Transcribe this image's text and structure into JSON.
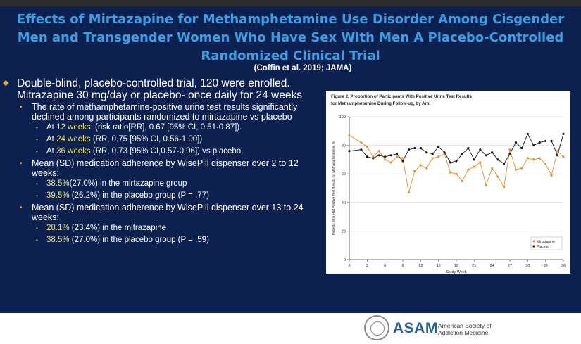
{
  "slide": {
    "title": "Effects of Mirtazapine for Methamphetamine Use Disorder Among Cisgender Men and Transgender Women Who Have Sex With Men A Placebo-Controlled Randomized Clinical Trial",
    "citation": "(Coffin et al. 2019; JAMA)",
    "bullets": {
      "b1a": "Double-blind, placebo-controlled trial, 120 were enrolled. Mitrazapine 30 mg/day or placebo- once daily for 24 weeks",
      "b2a": "The rate of methamphetamine-positive urine test results significantly declined among participants randomized to mirtazapine vs placebo",
      "b3a_pre": "At ",
      "b3a_hl": "12 weeks",
      "b3a_post": ": (risk ratio[RR], 0.67 [95% CI, 0.51-0.87]).",
      "b3b_pre": "At ",
      "b3b_hl": "24 weeks",
      "b3b_post": " (RR, 0.75 [95% CI, 0.56-1.00])",
      "b3c_pre": "At ",
      "b3c_hl": "36 weeks",
      "b3c_post": " (RR, 0.73 [95% CI,0.57-0.96]) vs placebo.",
      "b2b": "Mean (SD) medication adherence by WisePill dispenser over 2 to 12 weeks:",
      "b3d_hl": "38.5%",
      "b3d_post": "(27.0%) in the mirtazapine group",
      "b3e_hl": "39.5%",
      "b3e_post": " (26.2%) in the placebo group (P = .77)",
      "b2c": "Mean (SD) medication adherence by WisePill dispenser over 13 to 24 weeks:",
      "b3f_hl": "28.1%",
      "b3f_post": " (23.4%) in the mitrazapine",
      "b3g_hl": "38.5%",
      "b3g_post": " (27.0%) in the placebo group (P = .59)"
    }
  },
  "footer": {
    "org_abbrev": "ASAM",
    "org_name": "American Society of Addiction Medicine"
  },
  "colors": {
    "slide_bg": "#0d2150",
    "title": "#3aa0e6",
    "highlight": "#f3e64a",
    "mirtazapine": "#e8902a",
    "placebo": "#1a1a1a"
  },
  "chart_data": {
    "type": "line",
    "title": "Figure 2. Proportion of Participants With Positive Urine Test Results for Methamphetamine During Follow-up, by Arm",
    "xlabel": "Study Week",
    "ylabel": "Patients Who Had Positive Test Results for Methamphetamine, %",
    "xlim": [
      0,
      36
    ],
    "ylim": [
      0,
      100
    ],
    "xticks": [
      0,
      3,
      6,
      9,
      12,
      15,
      18,
      21,
      24,
      27,
      30,
      33,
      36
    ],
    "yticks": [
      0,
      20,
      40,
      60,
      80,
      100
    ],
    "legend_position": "bottom-right",
    "series": [
      {
        "name": "Mirtazapine",
        "color": "#e8902a",
        "marker": "circle",
        "x": [
          0,
          2,
          3,
          4,
          5,
          6,
          7,
          8,
          9,
          10,
          11,
          12,
          13,
          14,
          15,
          16,
          17,
          18,
          19,
          20,
          21,
          22,
          23,
          24,
          25,
          26,
          27,
          28,
          29,
          30,
          31,
          32,
          33,
          34,
          35,
          36
        ],
        "y": [
          87,
          82,
          79,
          72,
          76,
          70,
          68,
          72,
          71,
          47,
          62,
          66,
          64,
          71,
          72,
          74,
          61,
          60,
          55,
          63,
          65,
          68,
          52,
          64,
          58,
          51,
          77,
          63,
          64,
          71,
          70,
          71,
          67,
          59,
          76,
          72
        ]
      },
      {
        "name": "Placebo",
        "color": "#1a1a1a",
        "marker": "circle",
        "x": [
          0,
          2,
          3,
          4,
          5,
          6,
          7,
          8,
          9,
          10,
          11,
          12,
          13,
          14,
          15,
          16,
          17,
          18,
          19,
          20,
          21,
          22,
          23,
          24,
          25,
          26,
          27,
          28,
          29,
          30,
          31,
          32,
          33,
          34,
          35,
          36
        ],
        "y": [
          76,
          77,
          72,
          71,
          73,
          72,
          73,
          74,
          69,
          77,
          78,
          78,
          75,
          74,
          79,
          75,
          68,
          69,
          74,
          78,
          70,
          77,
          73,
          75,
          70,
          67,
          74,
          82,
          78,
          88,
          80,
          82,
          83,
          83,
          73,
          88
        ]
      }
    ]
  }
}
